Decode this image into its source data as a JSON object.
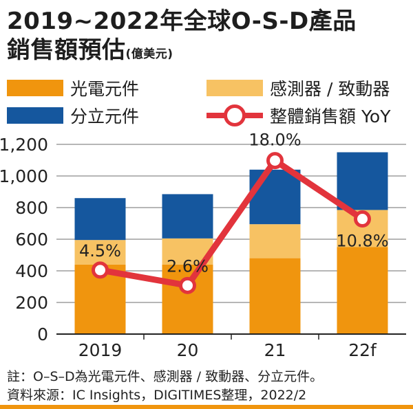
{
  "title": {
    "line1": "2019~2022年全球O-S-D產品",
    "line2": "銷售額預估",
    "unit": "(億美元)"
  },
  "legend": [
    {
      "label": "光電元件"
    },
    {
      "label": "感測器 / 致動器"
    },
    {
      "label": "分立元件"
    },
    {
      "label": "整體銷售額 YoY"
    }
  ],
  "colors": {
    "opto": "#f0950e",
    "sensor": "#f7c263",
    "discrete": "#15579e",
    "yoy": "#e2343c"
  },
  "chart_data": {
    "type": "bar",
    "stacked": true,
    "categories": [
      "2019",
      "20",
      "21",
      "22f"
    ],
    "series": [
      {
        "name": "光電元件",
        "values": [
          440,
          440,
          480,
          550
        ]
      },
      {
        "name": "感測器 / 致動器",
        "values": [
          155,
          165,
          215,
          235
        ]
      },
      {
        "name": "分立元件",
        "values": [
          265,
          280,
          345,
          365
        ]
      }
    ],
    "line_series": {
      "name": "整體銷售額 YoY",
      "values": [
        4.5,
        2.6,
        18.0,
        10.8
      ],
      "labels": [
        "4.5%",
        "2.6%",
        "18.0%",
        "10.8%"
      ]
    },
    "y_ticks": [
      "0",
      "200",
      "400",
      "600",
      "800",
      "1,000",
      "1,200"
    ],
    "ylim": [
      0,
      1200
    ],
    "grid": true
  },
  "notes": {
    "line1": "註：O–S–D為光電元件、感測器 / 致動器、分立元件。",
    "line2": "資料來源：IC Insights，DIGITIMES整理，2022/2"
  }
}
